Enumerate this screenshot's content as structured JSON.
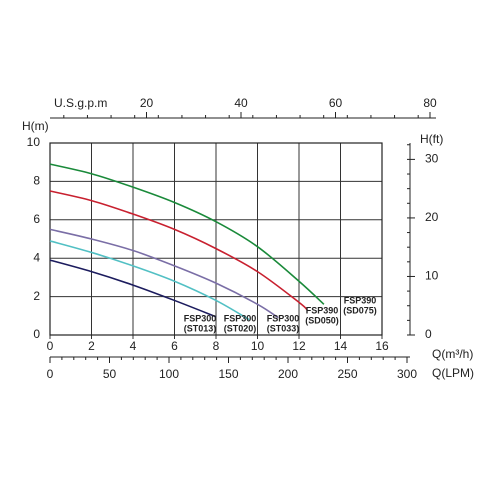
{
  "chart_data": {
    "type": "line",
    "xlabel": "Q(m³/h)",
    "ylabel": "H(m)",
    "y2label": "H(ft)",
    "xlim": [
      0,
      16
    ],
    "xticks": [
      0,
      2,
      4,
      6,
      8,
      10,
      12,
      14,
      16
    ],
    "ylim": [
      0,
      10
    ],
    "yticks": [
      0,
      2,
      4,
      6,
      8,
      10
    ],
    "y2lim": [
      0,
      32.8
    ],
    "y2ticks": [
      0,
      10,
      20,
      30
    ],
    "top_axis": {
      "label": "U.S.g.p.m",
      "lim": [
        0,
        80
      ],
      "ticks": [
        20,
        40,
        60,
        80
      ]
    },
    "bottom_axis2": {
      "label": "Q(LPM)",
      "lim": [
        0,
        300
      ],
      "ticks": [
        0,
        50,
        100,
        150,
        200,
        250,
        300
      ]
    },
    "grid": true,
    "series": [
      {
        "name": "FSP300",
        "code": "(ST013)",
        "color": "#1c1c5e",
        "x": [
          0,
          2,
          4,
          6,
          8
        ],
        "values": [
          3.9,
          3.3,
          2.6,
          1.8,
          0.95
        ]
      },
      {
        "name": "FSP300",
        "code": "(ST020)",
        "color": "#52c0c4",
        "x": [
          0,
          2,
          4,
          6,
          8,
          9.6
        ],
        "values": [
          4.9,
          4.3,
          3.6,
          2.8,
          1.8,
          0.8
        ]
      },
      {
        "name": "FSP300",
        "code": "(ST033)",
        "color": "#7a6ea6",
        "x": [
          0,
          2,
          4,
          6,
          8,
          10,
          11
        ],
        "values": [
          5.5,
          5.0,
          4.4,
          3.6,
          2.7,
          1.6,
          0.9
        ]
      },
      {
        "name": "FSP390",
        "code": "(SD050)",
        "color": "#c8202f",
        "x": [
          0,
          2,
          4,
          6,
          8,
          10,
          12,
          12.4
        ],
        "values": [
          7.5,
          7.0,
          6.3,
          5.5,
          4.5,
          3.3,
          1.7,
          1.3
        ]
      },
      {
        "name": "FSP390",
        "code": "(SD075)",
        "color": "#1a8a3a",
        "x": [
          0,
          2,
          4,
          6,
          8,
          10,
          12,
          13.2
        ],
        "values": [
          8.9,
          8.4,
          7.7,
          6.9,
          5.9,
          4.6,
          2.8,
          1.6
        ]
      }
    ]
  }
}
